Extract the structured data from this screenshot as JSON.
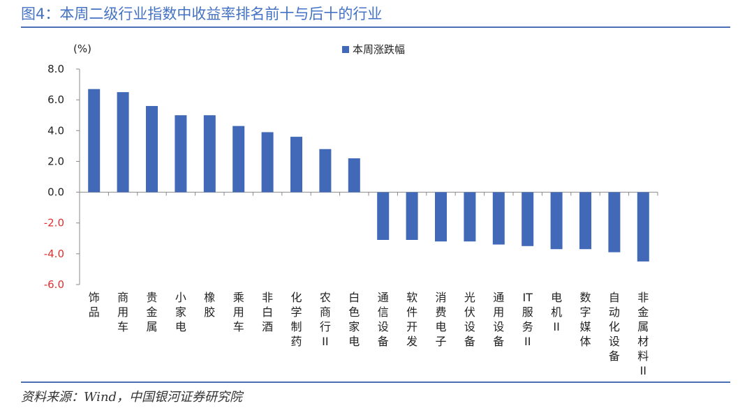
{
  "figure": {
    "title": "图4：本周二级行业指数中收益率排名前十与后十的行业",
    "source": "资料来源：Wind，中国银河证券研究院"
  },
  "colors": {
    "bar": "#4169b8",
    "title": "#4472c4",
    "negative_tick": "#e03030",
    "positive_tick": "#222222",
    "axis": "#888888"
  },
  "chart_data": {
    "type": "bar",
    "unit_label": "(%)",
    "legend": {
      "label": "本周涨跌幅",
      "placement": "top-center"
    },
    "ylim": [
      -6.0,
      8.0
    ],
    "yticks": [
      "8.0",
      "6.0",
      "4.0",
      "2.0",
      "0.0",
      "-2.0",
      "-4.0",
      "-6.0"
    ],
    "ytick_values": [
      8,
      6,
      4,
      2,
      0,
      -2,
      -4,
      -6
    ],
    "grid": false,
    "categories": [
      "饰品",
      "商用车",
      "贵金属",
      "小家电",
      "橡胶",
      "乘用车",
      "非白酒",
      "化学制药",
      "农商行II",
      "白色家电",
      "通信设备",
      "软件开发",
      "消费电子",
      "光伏设备",
      "通用设备",
      "IT服务II",
      "电机II",
      "数字媒体",
      "自动化设备",
      "非金属材料II"
    ],
    "series": [
      {
        "name": "本周涨跌幅",
        "values": [
          6.7,
          6.5,
          5.6,
          5.0,
          5.0,
          4.3,
          3.9,
          3.6,
          2.8,
          2.2,
          -3.1,
          -3.1,
          -3.2,
          -3.2,
          -3.4,
          -3.5,
          -3.7,
          -3.7,
          -3.9,
          -4.5
        ]
      }
    ]
  }
}
